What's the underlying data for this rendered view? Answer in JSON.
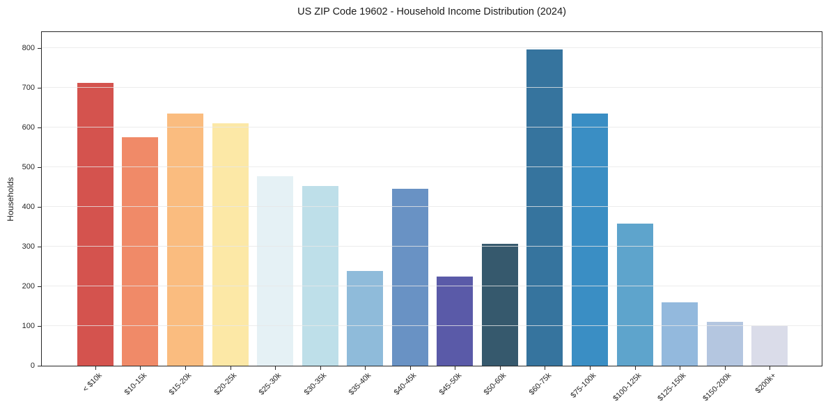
{
  "chart_data": {
    "type": "bar",
    "title": "US ZIP Code 19602 - Household Income Distribution (2024)",
    "xlabel": "",
    "ylabel": "Households",
    "categories": [
      "< $10k",
      "$10-15k",
      "$15-20k",
      "$20-25k",
      "$25-30k",
      "$30-35k",
      "$35-40k",
      "$40-45k",
      "$45-50k",
      "$50-60k",
      "$60-75k",
      "$75-100k",
      "$100-125k",
      "$125-150k",
      "$150-200k",
      "$200k+"
    ],
    "values": [
      712,
      575,
      635,
      610,
      477,
      453,
      238,
      445,
      224,
      307,
      797,
      635,
      358,
      160,
      111,
      100
    ],
    "bar_colors": [
      "#d4534e",
      "#f08a68",
      "#fabc7f",
      "#fce8a6",
      "#e5f1f5",
      "#bedfe9",
      "#8fbbda",
      "#6992c4",
      "#5a5aa8",
      "#36596d",
      "#36749e",
      "#3a8ec4",
      "#5ea4cc",
      "#93b9dd",
      "#b4c6e0",
      "#dadce9"
    ],
    "ylim": [
      0,
      840
    ],
    "yticks": [
      0,
      100,
      200,
      300,
      400,
      500,
      600,
      700,
      800
    ],
    "grid": true,
    "legend": "none",
    "x_tick_rotation_deg": 45,
    "colors": {
      "grid": "#e7e7e7",
      "spine": "#262626",
      "text": "#1a1a1a",
      "background": "#ffffff"
    }
  }
}
